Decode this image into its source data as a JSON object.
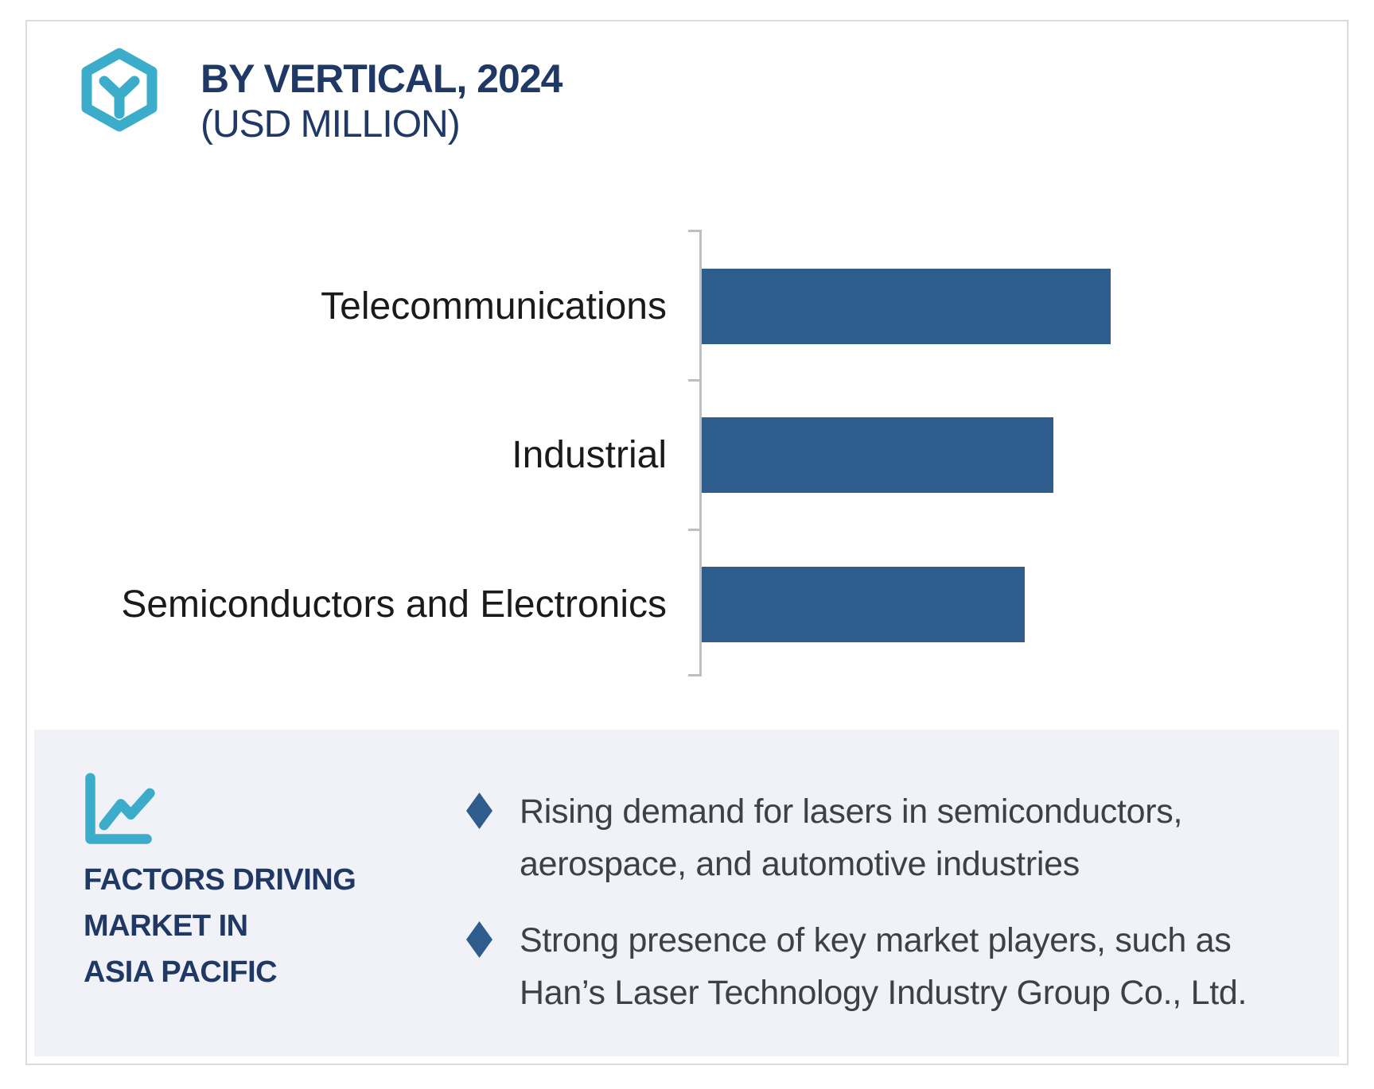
{
  "header": {
    "icon": "hexagon-y-icon",
    "title_line1": "BY VERTICAL, 2024",
    "title_line2": "(USD MILLION)"
  },
  "chart_data": {
    "type": "bar",
    "orientation": "horizontal",
    "title": "BY VERTICAL, 2024 (USD MILLION)",
    "categories": [
      "Telecommunications",
      "Industrial",
      "Semiconductors and Electronics"
    ],
    "values_relative_pct": [
      100,
      86,
      79
    ],
    "unit": "USD Million",
    "value_labels_shown": false,
    "axis_labels_shown": false,
    "grid": false,
    "bar_color": "#2e5c8c",
    "axis_color": "#bfbfbf"
  },
  "factors": {
    "icon": "line-chart-icon",
    "title_lines": [
      "FACTORS DRIVING",
      "MARKET IN",
      "ASIA PACIFIC"
    ],
    "bullets": [
      {
        "icon": "diamond-bullet-icon",
        "lines": [
          "Rising demand for lasers in semiconductors,",
          "aerospace, and automotive industries"
        ]
      },
      {
        "icon": "diamond-bullet-icon",
        "lines": [
          "Strong presence of key market players, such as",
          "Han’s Laser Technology Industry Group Co., Ltd."
        ]
      }
    ]
  },
  "colors": {
    "navy": "#1f3864",
    "teal": "#3bacc9",
    "bar_blue": "#2e5c8c",
    "panel_bg": "#f0f2f7",
    "body_text": "#3d4045",
    "label_text": "#1a1a1a",
    "axis_gray": "#bfbfbf"
  }
}
